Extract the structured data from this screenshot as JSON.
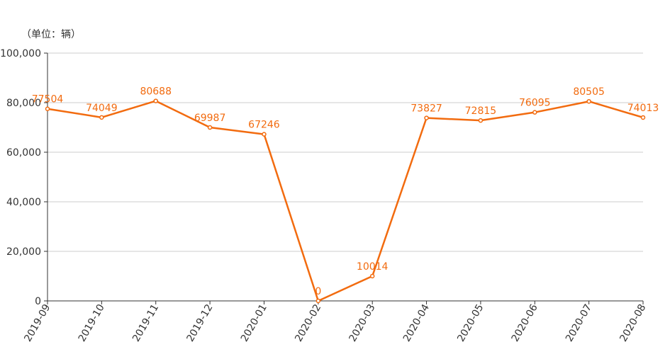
{
  "chart_data": {
    "type": "line",
    "unit_label": "（单位：辆）",
    "categories": [
      "2019-09",
      "2019-10",
      "2019-11",
      "2019-12",
      "2020-01",
      "2020-02",
      "2020-03",
      "2020-04",
      "2020-05",
      "2020-06",
      "2020-07",
      "2020-08"
    ],
    "series": [
      {
        "values": [
          77504,
          74049,
          80688,
          69987,
          67246,
          0,
          10014,
          73827,
          72815,
          76095,
          80505,
          74013
        ],
        "labels": [
          "77504",
          "74049",
          "80688",
          "69987",
          "67246",
          "0",
          "10014",
          "73827",
          "72815",
          "76095",
          "80505",
          "74013"
        ]
      }
    ],
    "ylim": [
      0,
      100000
    ],
    "yticks": [
      0,
      20000,
      40000,
      60000,
      80000,
      100000
    ],
    "ytick_labels": [
      "0",
      "20,000",
      "40,000",
      "60,000",
      "80,000",
      "100,000"
    ],
    "grid": true,
    "colors": {
      "series": "#F26B0F",
      "grid": "#CCCCCC",
      "axis": "#333333",
      "text": "#333333"
    }
  }
}
